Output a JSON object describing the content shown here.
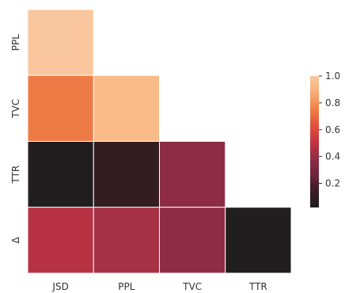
{
  "chart_data": {
    "type": "heatmap",
    "title": "",
    "xlabel": "",
    "ylabel": "",
    "x_categories": [
      "JSD",
      "PPL",
      "TVC",
      "TTR"
    ],
    "y_categories": [
      "PPL",
      "TVC",
      "TTR",
      "Δ"
    ],
    "mask": "upper triangle hidden",
    "cells": [
      {
        "row": "PPL",
        "col": "JSD",
        "value": 0.99
      },
      {
        "row": "TVC",
        "col": "JSD",
        "value": 0.74
      },
      {
        "row": "TVC",
        "col": "PPL",
        "value": 0.93
      },
      {
        "row": "TTR",
        "col": "JSD",
        "value": 0.03
      },
      {
        "row": "TTR",
        "col": "PPL",
        "value": 0.12
      },
      {
        "row": "TTR",
        "col": "TVC",
        "value": 0.38
      },
      {
        "row": "Δ",
        "col": "JSD",
        "value": 0.48
      },
      {
        "row": "Δ",
        "col": "PPL",
        "value": 0.44
      },
      {
        "row": "Δ",
        "col": "TVC",
        "value": 0.38
      },
      {
        "row": "Δ",
        "col": "TTR",
        "value": 0.02
      }
    ],
    "colorbar": {
      "range": [
        0.02,
        1.0
      ],
      "ticks": [
        "0.2",
        "0.4",
        "0.6",
        "0.8",
        "1.0"
      ],
      "colormap": "rocket"
    },
    "cell_border_color": "#ffffff"
  }
}
